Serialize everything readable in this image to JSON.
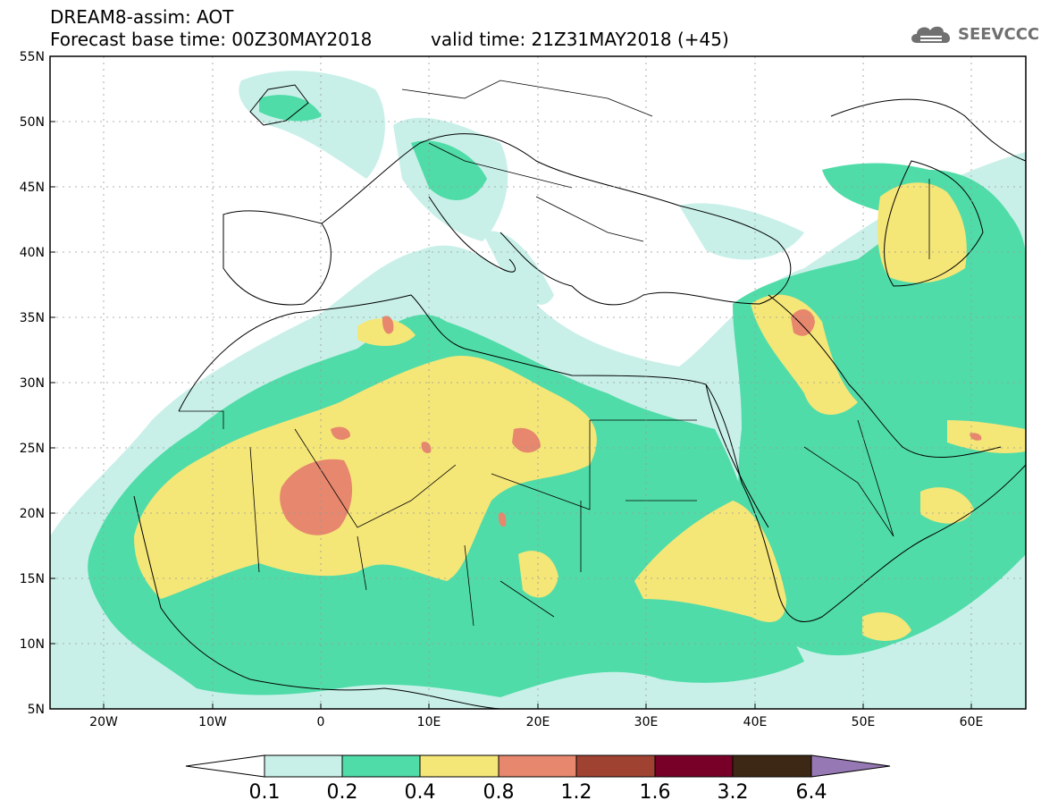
{
  "header": {
    "line1": "DREAM8-assim: AOT",
    "line2": "Forecast base time: 00Z30MAY2018",
    "valid": "valid time: 21Z31MAY2018 (+45)"
  },
  "logo": {
    "text": "SEEVCCC",
    "icon": "cloud-logo-icon"
  },
  "axes": {
    "lat_ticks": [
      "55N",
      "50N",
      "45N",
      "40N",
      "35N",
      "30N",
      "25N",
      "20N",
      "15N",
      "10N",
      "5N"
    ],
    "lon_ticks": [
      "20W",
      "10W",
      "0",
      "10E",
      "20E",
      "30E",
      "40E",
      "50E",
      "60E"
    ],
    "lat_range": [
      5,
      55
    ],
    "lon_range": [
      -25,
      65
    ]
  },
  "colorbar": {
    "labels": [
      "0.1",
      "0.2",
      "0.4",
      "0.8",
      "1.2",
      "1.6",
      "3.2",
      "6.4"
    ],
    "colors": [
      "#ffffff",
      "#c8f0e8",
      "#50dca8",
      "#f5e678",
      "#e6876e",
      "#a04232",
      "#780028",
      "#3c2814",
      "#9678b4"
    ]
  },
  "colors": {
    "c1": "#c8f0e8",
    "c2": "#50dca8",
    "c3": "#f5e678",
    "c4": "#e6876e"
  }
}
